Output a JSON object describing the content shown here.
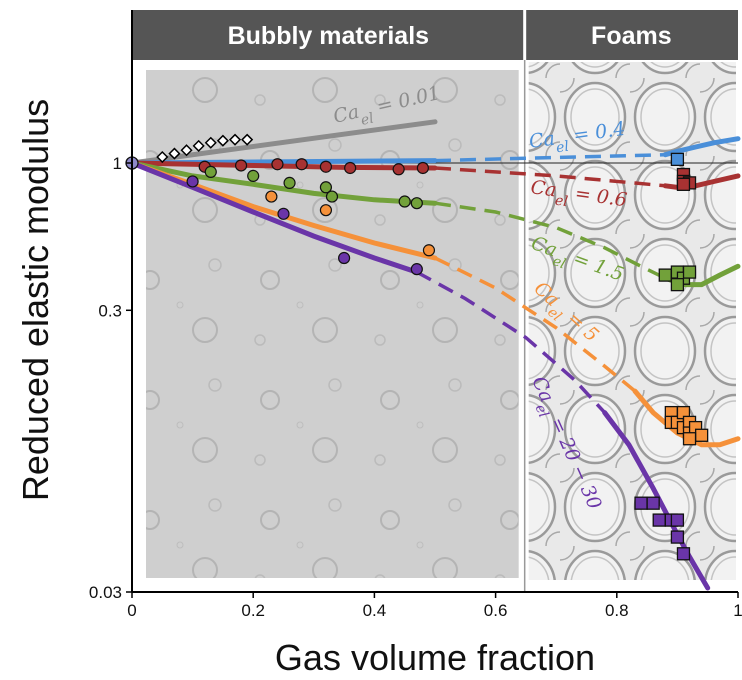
{
  "chart_data": {
    "type": "line",
    "xlabel": "Gas volume fraction",
    "ylabel": "Reduced elastic modulus",
    "yscale": "log",
    "xlim": [
      0,
      1
    ],
    "ylim": [
      0.03,
      2.2
    ],
    "xticks": [
      0,
      0.2,
      0.4,
      0.6,
      0.8,
      1
    ],
    "xtick_labels": [
      "0",
      "0.2",
      "0.4",
      "0.6",
      "0.8",
      "1"
    ],
    "yticks": [
      0.03,
      0.3,
      1
    ],
    "ytick_labels": [
      "0.03",
      "0.3",
      "1"
    ],
    "reference_line_y": 1,
    "divider_x": 0.648,
    "regions": [
      {
        "label": "Bubbly materials",
        "x_from": 0,
        "x_to": 0.648
      },
      {
        "label": "Foams",
        "x_from": 0.648,
        "x_to": 1
      }
    ],
    "origin_point": {
      "x": 0,
      "y": 1
    },
    "series": [
      {
        "label_text": "= 0.01",
        "color": "#8c8c8c",
        "solid": [
          [
            0,
            1.0
          ],
          [
            0.5,
            1.4
          ]
        ],
        "dashed": [],
        "markers": "diamond",
        "points": [
          [
            0.05,
            1.05
          ],
          [
            0.07,
            1.08
          ],
          [
            0.09,
            1.11
          ],
          [
            0.11,
            1.15
          ],
          [
            0.13,
            1.18
          ],
          [
            0.15,
            1.2
          ],
          [
            0.17,
            1.21
          ],
          [
            0.19,
            1.21
          ]
        ]
      },
      {
        "label_text": "= 0.4",
        "color": "#4a8fd9",
        "solid": [
          [
            0,
            1.0
          ],
          [
            0.5,
            1.02
          ]
        ],
        "dashed": [
          [
            0.5,
            1.02
          ],
          [
            0.88,
            1.07
          ]
        ],
        "solid_foam": [
          [
            0.88,
            1.07
          ],
          [
            0.9,
            1.1
          ],
          [
            0.93,
            1.14
          ],
          [
            0.96,
            1.18
          ],
          [
            1.0,
            1.22
          ]
        ],
        "markers": "square",
        "points": [
          [
            0.9,
            1.03
          ]
        ]
      },
      {
        "label_text": "= 0.6",
        "color": "#a83232",
        "solid": [
          [
            0,
            1.0
          ],
          [
            0.2,
            0.98
          ],
          [
            0.35,
            0.965
          ],
          [
            0.5,
            0.96
          ]
        ],
        "dashed": [
          [
            0.5,
            0.96
          ],
          [
            0.7,
            0.9
          ],
          [
            0.88,
            0.83
          ]
        ],
        "solid_foam": [
          [
            0.88,
            0.83
          ],
          [
            0.9,
            0.82
          ],
          [
            0.93,
            0.83
          ],
          [
            0.96,
            0.86
          ],
          [
            1.0,
            0.9
          ]
        ],
        "markers": "circle",
        "points": [
          [
            0.12,
            0.97
          ],
          [
            0.18,
            0.98
          ],
          [
            0.24,
            0.99
          ],
          [
            0.28,
            0.99
          ],
          [
            0.32,
            0.97
          ],
          [
            0.36,
            0.96
          ],
          [
            0.44,
            0.95
          ],
          [
            0.48,
            0.96
          ]
        ],
        "foam_points": [
          [
            0.91,
            0.91
          ],
          [
            0.91,
            0.86
          ],
          [
            0.92,
            0.85
          ],
          [
            0.91,
            0.84
          ]
        ]
      },
      {
        "label_text": "= 1.5",
        "color": "#72a13a",
        "solid": [
          [
            0,
            1.0
          ],
          [
            0.1,
            0.9
          ],
          [
            0.2,
            0.84
          ],
          [
            0.3,
            0.78
          ],
          [
            0.4,
            0.74
          ],
          [
            0.5,
            0.72
          ]
        ],
        "dashed": [
          [
            0.5,
            0.72
          ],
          [
            0.6,
            0.67
          ],
          [
            0.7,
            0.59
          ],
          [
            0.78,
            0.5
          ],
          [
            0.84,
            0.43
          ],
          [
            0.88,
            0.39
          ]
        ],
        "solid_foam": [
          [
            0.88,
            0.39
          ],
          [
            0.91,
            0.37
          ],
          [
            0.94,
            0.37
          ],
          [
            0.97,
            0.4
          ],
          [
            1.0,
            0.43
          ]
        ],
        "markers": "circle",
        "points": [
          [
            0.13,
            0.93
          ],
          [
            0.2,
            0.9
          ],
          [
            0.26,
            0.85
          ],
          [
            0.32,
            0.82
          ],
          [
            0.33,
            0.76
          ],
          [
            0.45,
            0.73
          ],
          [
            0.47,
            0.72
          ]
        ],
        "foam_points": [
          [
            0.88,
            0.4
          ],
          [
            0.9,
            0.41
          ],
          [
            0.91,
            0.39
          ],
          [
            0.92,
            0.41
          ],
          [
            0.9,
            0.37
          ]
        ]
      },
      {
        "label_text": "= 5",
        "color": "#f5913a",
        "solid": [
          [
            0,
            1.0
          ],
          [
            0.1,
            0.84
          ],
          [
            0.2,
            0.7
          ],
          [
            0.3,
            0.6
          ],
          [
            0.4,
            0.52
          ],
          [
            0.5,
            0.46
          ]
        ],
        "dashed": [
          [
            0.5,
            0.46
          ],
          [
            0.6,
            0.36
          ],
          [
            0.7,
            0.26
          ],
          [
            0.78,
            0.19
          ],
          [
            0.83,
            0.155
          ]
        ],
        "solid_foam": [
          [
            0.83,
            0.155
          ],
          [
            0.86,
            0.13
          ],
          [
            0.9,
            0.11
          ],
          [
            0.94,
            0.1
          ],
          [
            0.97,
            0.1
          ],
          [
            1.0,
            0.105
          ]
        ],
        "markers": "circle",
        "points": [
          [
            0.23,
            0.76
          ],
          [
            0.32,
            0.68
          ],
          [
            0.49,
            0.49
          ]
        ],
        "foam_points": [
          [
            0.89,
            0.13
          ],
          [
            0.89,
            0.12
          ],
          [
            0.9,
            0.12
          ],
          [
            0.91,
            0.13
          ],
          [
            0.91,
            0.115
          ],
          [
            0.92,
            0.12
          ],
          [
            0.92,
            0.11
          ],
          [
            0.93,
            0.115
          ],
          [
            0.94,
            0.108
          ],
          [
            0.92,
            0.105
          ]
        ]
      },
      {
        "label_text": "= 20 − 30",
        "color": "#6a35a8",
        "solid": [
          [
            0,
            1.0
          ],
          [
            0.1,
            0.82
          ],
          [
            0.2,
            0.67
          ],
          [
            0.3,
            0.55
          ],
          [
            0.4,
            0.46
          ],
          [
            0.47,
            0.41
          ]
        ],
        "dashed": [
          [
            0.47,
            0.41
          ],
          [
            0.55,
            0.33
          ],
          [
            0.65,
            0.24
          ],
          [
            0.73,
            0.17
          ],
          [
            0.78,
            0.13
          ]
        ],
        "solid_foam": [
          [
            0.78,
            0.13
          ],
          [
            0.82,
            0.1
          ],
          [
            0.86,
            0.07
          ],
          [
            0.9,
            0.048
          ],
          [
            0.92,
            0.04
          ],
          [
            0.95,
            0.031
          ]
        ],
        "markers": "circle",
        "points": [
          [
            0.1,
            0.86
          ],
          [
            0.25,
            0.66
          ],
          [
            0.35,
            0.46
          ],
          [
            0.47,
            0.42
          ]
        ],
        "foam_points": [
          [
            0.84,
            0.062
          ],
          [
            0.86,
            0.062
          ],
          [
            0.87,
            0.054
          ],
          [
            0.89,
            0.054
          ],
          [
            0.9,
            0.054
          ],
          [
            0.9,
            0.047
          ],
          [
            0.91,
            0.041
          ]
        ]
      }
    ]
  },
  "ca_symbol": "Ca",
  "ca_subscript": "el"
}
